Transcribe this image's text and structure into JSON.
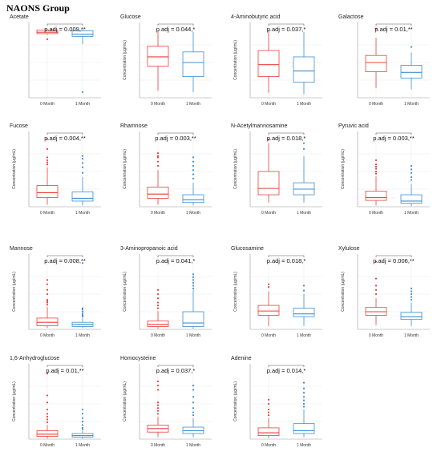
{
  "figure_title": "NAONS Group",
  "colors": {
    "month0": "#e8413c",
    "month1": "#3d8fd1",
    "grid": "#ececec",
    "axis": "#9a9a9a"
  },
  "chart_data": [
    {
      "type": "boxplot",
      "title": "Acetate",
      "ylabel": "",
      "categories": [
        "0 Month",
        "1 Month"
      ],
      "annotation": "p.adj = 0.009,**",
      "boxes": [
        {
          "min": 0.89,
          "q1": 0.91,
          "median": 0.93,
          "q3": 0.96,
          "max": 0.97,
          "outliers": [
            0.83
          ]
        },
        {
          "min": 0.76,
          "q1": 0.87,
          "median": 0.9,
          "q3": 0.95,
          "max": 0.97,
          "outliers": [
            0.08
          ]
        }
      ]
    },
    {
      "type": "boxplot",
      "title": "Glucose",
      "ylabel": "Concentration (μg/mL)",
      "categories": [
        "0 Month",
        "1 Month"
      ],
      "annotation": "p.adj = 0.044,*",
      "boxes": [
        {
          "min": 0.1,
          "q1": 0.45,
          "median": 0.58,
          "q3": 0.73,
          "max": 0.95,
          "outliers": []
        },
        {
          "min": 0.08,
          "q1": 0.3,
          "median": 0.5,
          "q3": 0.65,
          "max": 0.93,
          "outliers": []
        }
      ]
    },
    {
      "type": "boxplot",
      "title": "4-Aminobutyric acid",
      "ylabel": "Concentration (μg/mL)",
      "categories": [
        "0 Month",
        "1 Month"
      ],
      "annotation": "p.adj = 0.037,*",
      "boxes": [
        {
          "min": 0.07,
          "q1": 0.3,
          "median": 0.47,
          "q3": 0.67,
          "max": 0.96,
          "outliers": []
        },
        {
          "min": 0.05,
          "q1": 0.22,
          "median": 0.38,
          "q3": 0.58,
          "max": 0.93,
          "outliers": []
        }
      ]
    },
    {
      "type": "boxplot",
      "title": "Galactose",
      "ylabel": "",
      "categories": [
        "0 Month",
        "1 Month"
      ],
      "annotation": "p.adj = 0.01,**",
      "boxes": [
        {
          "min": 0.14,
          "q1": 0.37,
          "median": 0.5,
          "q3": 0.6,
          "max": 0.85,
          "outliers": [
            0.98
          ]
        },
        {
          "min": 0.12,
          "q1": 0.28,
          "median": 0.36,
          "q3": 0.46,
          "max": 0.64,
          "outliers": [
            0.72
          ]
        }
      ]
    },
    {
      "type": "boxplot",
      "title": "Fucose",
      "ylabel": "Concentration (μg/mL)",
      "categories": [
        "0 Month",
        "1 Month"
      ],
      "annotation": "p.adj = 0.004,**",
      "boxes": [
        {
          "min": 0.03,
          "q1": 0.13,
          "median": 0.2,
          "q3": 0.3,
          "max": 0.56,
          "outliers": [
            0.6,
            0.63,
            0.66,
            0.7,
            0.82,
            0.96
          ]
        },
        {
          "min": 0.02,
          "q1": 0.08,
          "median": 0.12,
          "q3": 0.21,
          "max": 0.42,
          "outliers": [
            0.48,
            0.56,
            0.62,
            0.68,
            0.72
          ]
        }
      ]
    },
    {
      "type": "boxplot",
      "title": "Rhamnose",
      "ylabel": "Concentration (μg/mL)",
      "categories": [
        "0 Month",
        "1 Month"
      ],
      "annotation": "p.adj = 0.003,**",
      "boxes": [
        {
          "min": 0.03,
          "q1": 0.12,
          "median": 0.18,
          "q3": 0.28,
          "max": 0.52,
          "outliers": [
            0.58,
            0.64,
            0.7,
            0.72,
            0.76
          ]
        },
        {
          "min": 0.02,
          "q1": 0.06,
          "median": 0.1,
          "q3": 0.17,
          "max": 0.34,
          "outliers": [
            0.4,
            0.46,
            0.52,
            0.58,
            0.64,
            0.7
          ]
        }
      ]
    },
    {
      "type": "boxplot",
      "title": "N-Acetylmannosamine",
      "ylabel": "Concentration (μg/mL)",
      "categories": [
        "0 Month",
        "1 Month"
      ],
      "annotation": "p.adj = 0.018,*",
      "boxes": [
        {
          "min": 0.06,
          "q1": 0.17,
          "median": 0.26,
          "q3": 0.5,
          "max": 0.9,
          "outliers": [
            0.95
          ]
        },
        {
          "min": 0.06,
          "q1": 0.17,
          "median": 0.25,
          "q3": 0.34,
          "max": 0.72,
          "outliers": [
            0.82,
            0.9
          ]
        }
      ]
    },
    {
      "type": "boxplot",
      "title": "Pyruvic acid",
      "ylabel": "Concentration (μg/mL)",
      "categories": [
        "0 Month",
        "1 Month"
      ],
      "annotation": "p.adj = 0.003,**",
      "boxes": [
        {
          "min": 0.02,
          "q1": 0.09,
          "median": 0.13,
          "q3": 0.22,
          "max": 0.43,
          "outliers": [
            0.47,
            0.5,
            0.54,
            0.57,
            0.6,
            0.66
          ]
        },
        {
          "min": 0.01,
          "q1": 0.05,
          "median": 0.08,
          "q3": 0.17,
          "max": 0.32,
          "outliers": [
            0.38,
            0.42,
            0.48,
            0.53,
            0.58
          ]
        }
      ]
    },
    {
      "type": "boxplot",
      "title": "Mannose",
      "ylabel": "Concentration (μg/mL)",
      "categories": [
        "0 Month",
        "1 Month"
      ],
      "annotation": "p.adj = 0.008,**",
      "boxes": [
        {
          "min": 0.02,
          "q1": 0.05,
          "median": 0.1,
          "q3": 0.16,
          "max": 0.32,
          "outliers": [
            0.35,
            0.38,
            0.4,
            0.42,
            0.5,
            0.56,
            0.64,
            0.7
          ]
        },
        {
          "min": 0.02,
          "q1": 0.04,
          "median": 0.07,
          "q3": 0.1,
          "max": 0.16,
          "outliers": [
            0.18,
            0.2,
            0.22,
            0.25,
            0.28,
            0.3,
            0.94
          ]
        }
      ]
    },
    {
      "type": "boxplot",
      "title": "3-Aminopropanoic acid",
      "ylabel": "Concentration (μg/mL)",
      "categories": [
        "0 Month",
        "1 Month"
      ],
      "annotation": "p.adj = 0.041,*",
      "boxes": [
        {
          "min": 0.01,
          "q1": 0.04,
          "median": 0.07,
          "q3": 0.12,
          "max": 0.26,
          "outliers": [
            0.3,
            0.34,
            0.38,
            0.44,
            0.5,
            0.56
          ]
        },
        {
          "min": 0.01,
          "q1": 0.04,
          "median": 0.09,
          "q3": 0.25,
          "max": 0.56,
          "outliers": [
            0.58,
            0.62,
            0.66,
            0.7,
            0.74,
            0.78
          ]
        }
      ]
    },
    {
      "type": "boxplot",
      "title": "Glucosamine",
      "ylabel": "Concentration (μg/mL)",
      "categories": [
        "0 Month",
        "1 Month"
      ],
      "annotation": "p.adj = 0.018,*",
      "boxes": [
        {
          "min": 0.05,
          "q1": 0.2,
          "median": 0.26,
          "q3": 0.34,
          "max": 0.54,
          "outliers": [
            0.6,
            0.64
          ]
        },
        {
          "min": 0.05,
          "q1": 0.18,
          "median": 0.22,
          "q3": 0.3,
          "max": 0.5,
          "outliers": [
            0.55,
            0.62
          ]
        }
      ]
    },
    {
      "type": "boxplot",
      "title": "Xylulose",
      "ylabel": "Concentration (μg/mL)",
      "categories": [
        "0 Month",
        "1 Month"
      ],
      "annotation": "p.adj = 0.006,**",
      "boxes": [
        {
          "min": 0.06,
          "q1": 0.2,
          "median": 0.25,
          "q3": 0.31,
          "max": 0.44,
          "outliers": [
            0.5,
            0.56,
            0.62,
            0.72,
            0.96
          ]
        },
        {
          "min": 0.05,
          "q1": 0.14,
          "median": 0.18,
          "q3": 0.24,
          "max": 0.38,
          "outliers": [
            0.42,
            0.46,
            0.5,
            0.54,
            0.58
          ]
        }
      ]
    },
    {
      "type": "boxplot",
      "title": "1,6-Anhydroglucose",
      "ylabel": "Concentration (μg/mL)",
      "categories": [
        "0 Month",
        "1 Month"
      ],
      "annotation": "p.adj = 0.01,**",
      "boxes": [
        {
          "min": 0.01,
          "q1": 0.04,
          "median": 0.07,
          "q3": 0.12,
          "max": 0.2,
          "outliers": [
            0.24,
            0.28,
            0.32,
            0.36,
            0.42,
            0.52,
            0.62,
            0.93
          ]
        },
        {
          "min": 0.01,
          "q1": 0.03,
          "median": 0.05,
          "q3": 0.08,
          "max": 0.12,
          "outliers": [
            0.14,
            0.16,
            0.2,
            0.25,
            0.3,
            0.36,
            0.42
          ]
        }
      ]
    },
    {
      "type": "boxplot",
      "title": "Homocysteine",
      "ylabel": "Concentration (μg/mL)",
      "categories": [
        "0 Month",
        "1 Month"
      ],
      "annotation": "p.adj = 0.037,*",
      "boxes": [
        {
          "min": 0.03,
          "q1": 0.1,
          "median": 0.15,
          "q3": 0.2,
          "max": 0.32,
          "outliers": [
            0.36,
            0.4,
            0.44,
            0.48,
            0.52,
            0.7,
            0.76,
            0.82
          ]
        },
        {
          "min": 0.03,
          "q1": 0.08,
          "median": 0.12,
          "q3": 0.17,
          "max": 0.3,
          "outliers": [
            0.34,
            0.38,
            0.44,
            0.52,
            0.6,
            0.7,
            0.76
          ]
        }
      ]
    },
    {
      "type": "boxplot",
      "title": "Adenine",
      "ylabel": "Concentration (μg/mL)",
      "categories": [
        "0 Month",
        "1 Month"
      ],
      "annotation": "p.adj = 0.014,*",
      "boxes": [
        {
          "min": 0.02,
          "q1": 0.05,
          "median": 0.09,
          "q3": 0.16,
          "max": 0.3,
          "outliers": [
            0.34,
            0.38,
            0.42,
            0.5,
            0.56
          ]
        },
        {
          "min": 0.03,
          "q1": 0.08,
          "median": 0.12,
          "q3": 0.22,
          "max": 0.42,
          "outliers": [
            0.46,
            0.5,
            0.55,
            0.6,
            0.66,
            0.72,
            0.8
          ]
        }
      ]
    }
  ]
}
